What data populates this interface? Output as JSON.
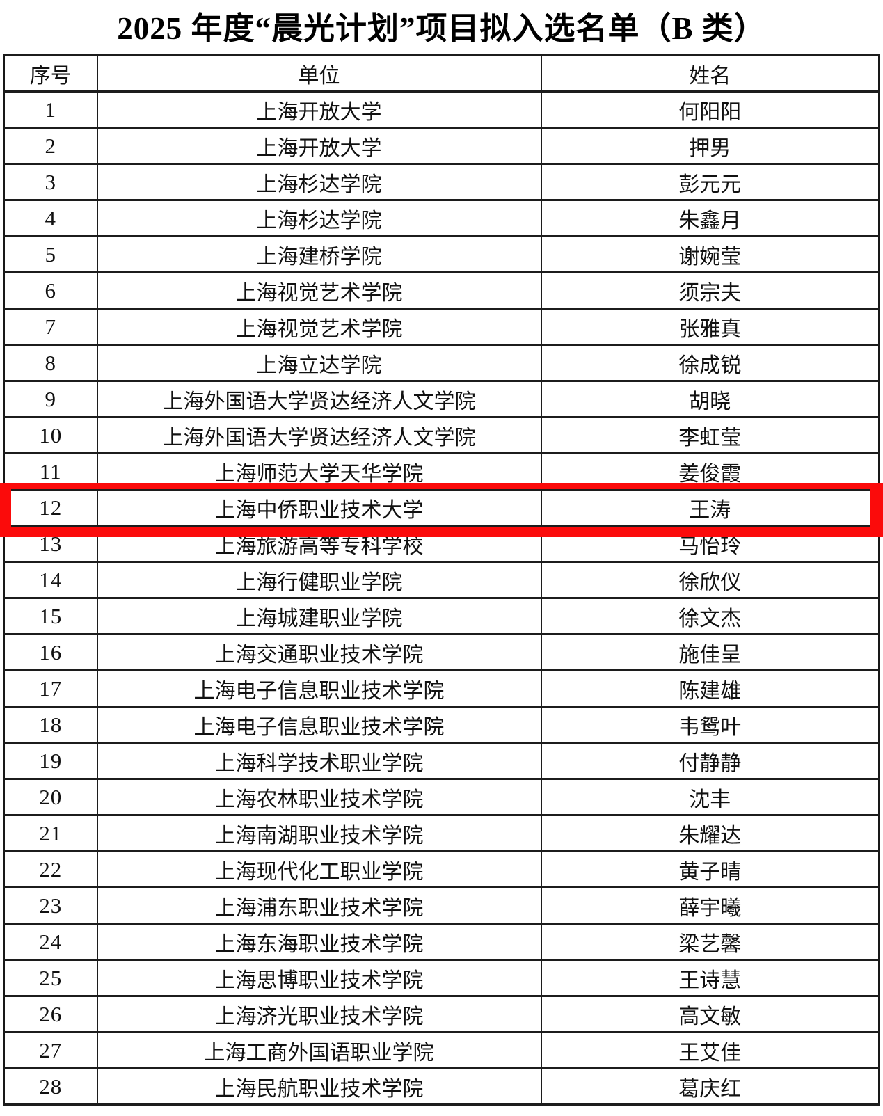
{
  "title": "2025 年度“晨光计划”项目拟入选名单（B 类）",
  "table": {
    "headers": [
      "序号",
      "单位",
      "姓名"
    ],
    "rows": [
      {
        "no": "1",
        "unit": "上海开放大学",
        "name": "何阳阳"
      },
      {
        "no": "2",
        "unit": "上海开放大学",
        "name": "押男"
      },
      {
        "no": "3",
        "unit": "上海杉达学院",
        "name": "彭元元"
      },
      {
        "no": "4",
        "unit": "上海杉达学院",
        "name": "朱鑫月"
      },
      {
        "no": "5",
        "unit": "上海建桥学院",
        "name": "谢婉莹"
      },
      {
        "no": "6",
        "unit": "上海视觉艺术学院",
        "name": "须宗夫"
      },
      {
        "no": "7",
        "unit": "上海视觉艺术学院",
        "name": "张雅真"
      },
      {
        "no": "8",
        "unit": "上海立达学院",
        "name": "徐成锐"
      },
      {
        "no": "9",
        "unit": "上海外国语大学贤达经济人文学院",
        "name": "胡晓"
      },
      {
        "no": "10",
        "unit": "上海外国语大学贤达经济人文学院",
        "name": "李虹莹"
      },
      {
        "no": "11",
        "unit": "上海师范大学天华学院",
        "name": "姜俊霞"
      },
      {
        "no": "12",
        "unit": "上海中侨职业技术大学",
        "name": "王涛"
      },
      {
        "no": "13",
        "unit": "上海旅游高等专科学校",
        "name": "马怡玲"
      },
      {
        "no": "14",
        "unit": "上海行健职业学院",
        "name": "徐欣仪"
      },
      {
        "no": "15",
        "unit": "上海城建职业学院",
        "name": "徐文杰"
      },
      {
        "no": "16",
        "unit": "上海交通职业技术学院",
        "name": "施佳呈"
      },
      {
        "no": "17",
        "unit": "上海电子信息职业技术学院",
        "name": "陈建雄"
      },
      {
        "no": "18",
        "unit": "上海电子信息职业技术学院",
        "name": "韦鸳叶"
      },
      {
        "no": "19",
        "unit": "上海科学技术职业学院",
        "name": "付静静"
      },
      {
        "no": "20",
        "unit": "上海农林职业技术学院",
        "name": "沈丰"
      },
      {
        "no": "21",
        "unit": "上海南湖职业技术学院",
        "name": "朱耀达"
      },
      {
        "no": "22",
        "unit": "上海现代化工职业学院",
        "name": "黄子晴"
      },
      {
        "no": "23",
        "unit": "上海浦东职业技术学院",
        "name": "薛宇曦"
      },
      {
        "no": "24",
        "unit": "上海东海职业技术学院",
        "name": "梁艺馨"
      },
      {
        "no": "25",
        "unit": "上海思博职业技术学院",
        "name": "王诗慧"
      },
      {
        "no": "26",
        "unit": "上海济光职业技术学院",
        "name": "高文敏"
      },
      {
        "no": "27",
        "unit": "上海工商外国语职业学院",
        "name": "王艾佳"
      },
      {
        "no": "28",
        "unit": "上海民航职业技术学院",
        "name": "葛庆红"
      }
    ]
  },
  "highlight": {
    "row_no": "12",
    "color": "#fb0b0b"
  }
}
